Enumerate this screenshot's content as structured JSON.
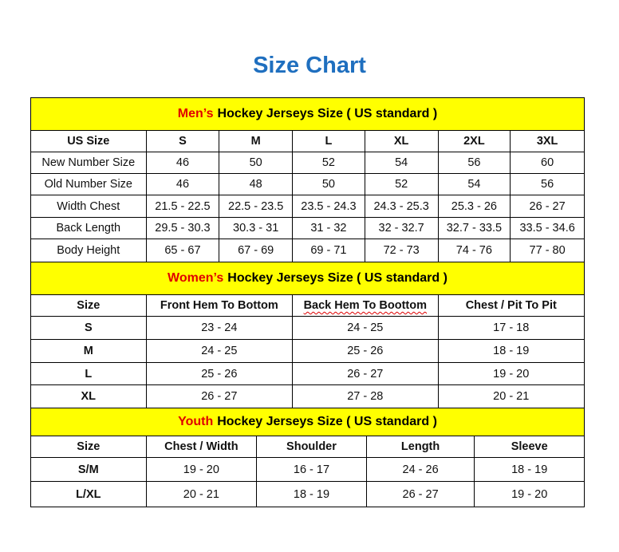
{
  "title": "Size Chart",
  "colors": {
    "title": "#1f6fbf",
    "band": "#ffff00",
    "accent": "#e00000"
  },
  "mens": {
    "accent": "Men’s",
    "heading": "Hockey Jerseys Size ( US standard )",
    "columns": [
      "US Size",
      "S",
      "M",
      "L",
      "XL",
      "2XL",
      "3XL"
    ],
    "rows": [
      [
        "New Number Size",
        "46",
        "50",
        "52",
        "54",
        "56",
        "60"
      ],
      [
        "Old Number Size",
        "46",
        "48",
        "50",
        "52",
        "54",
        "56"
      ],
      [
        "Width Chest",
        "21.5 - 22.5",
        "22.5 - 23.5",
        "23.5 - 24.3",
        "24.3 - 25.3",
        "25.3 - 26",
        "26 - 27"
      ],
      [
        "Back Length",
        "29.5 - 30.3",
        "30.3 - 31",
        "31 - 32",
        "32 - 32.7",
        "32.7 - 33.5",
        "33.5 - 34.6"
      ],
      [
        "Body Height",
        "65 - 67",
        "67 - 69",
        "69 - 71",
        "72 - 73",
        "74 - 76",
        "77 - 80"
      ]
    ]
  },
  "womens": {
    "accent": "Women’s",
    "heading": "Hockey Jerseys Size ( US standard )",
    "columns": [
      "Size",
      "Front Hem To Bottom",
      "Back Hem To Boottom",
      "Chest / Pit To Pit"
    ],
    "rows": [
      [
        "S",
        "23 - 24",
        "24 - 25",
        "17 - 18"
      ],
      [
        "M",
        "24 - 25",
        "25 - 26",
        "18 - 19"
      ],
      [
        "L",
        "25 - 26",
        "26 - 27",
        "19 - 20"
      ],
      [
        "XL",
        "26 - 27",
        "27 - 28",
        "20 - 21"
      ]
    ]
  },
  "youth": {
    "accent": "Youth",
    "heading": "Hockey Jerseys Size ( US standard )",
    "columns": [
      "Size",
      "Chest / Width",
      "Shoulder",
      "Length",
      "Sleeve"
    ],
    "rows": [
      [
        "S/M",
        "19 - 20",
        "16 - 17",
        "24 - 26",
        "18 - 19"
      ],
      [
        "L/XL",
        "20 - 21",
        "18 - 19",
        "26 - 27",
        "19 - 20"
      ]
    ]
  }
}
